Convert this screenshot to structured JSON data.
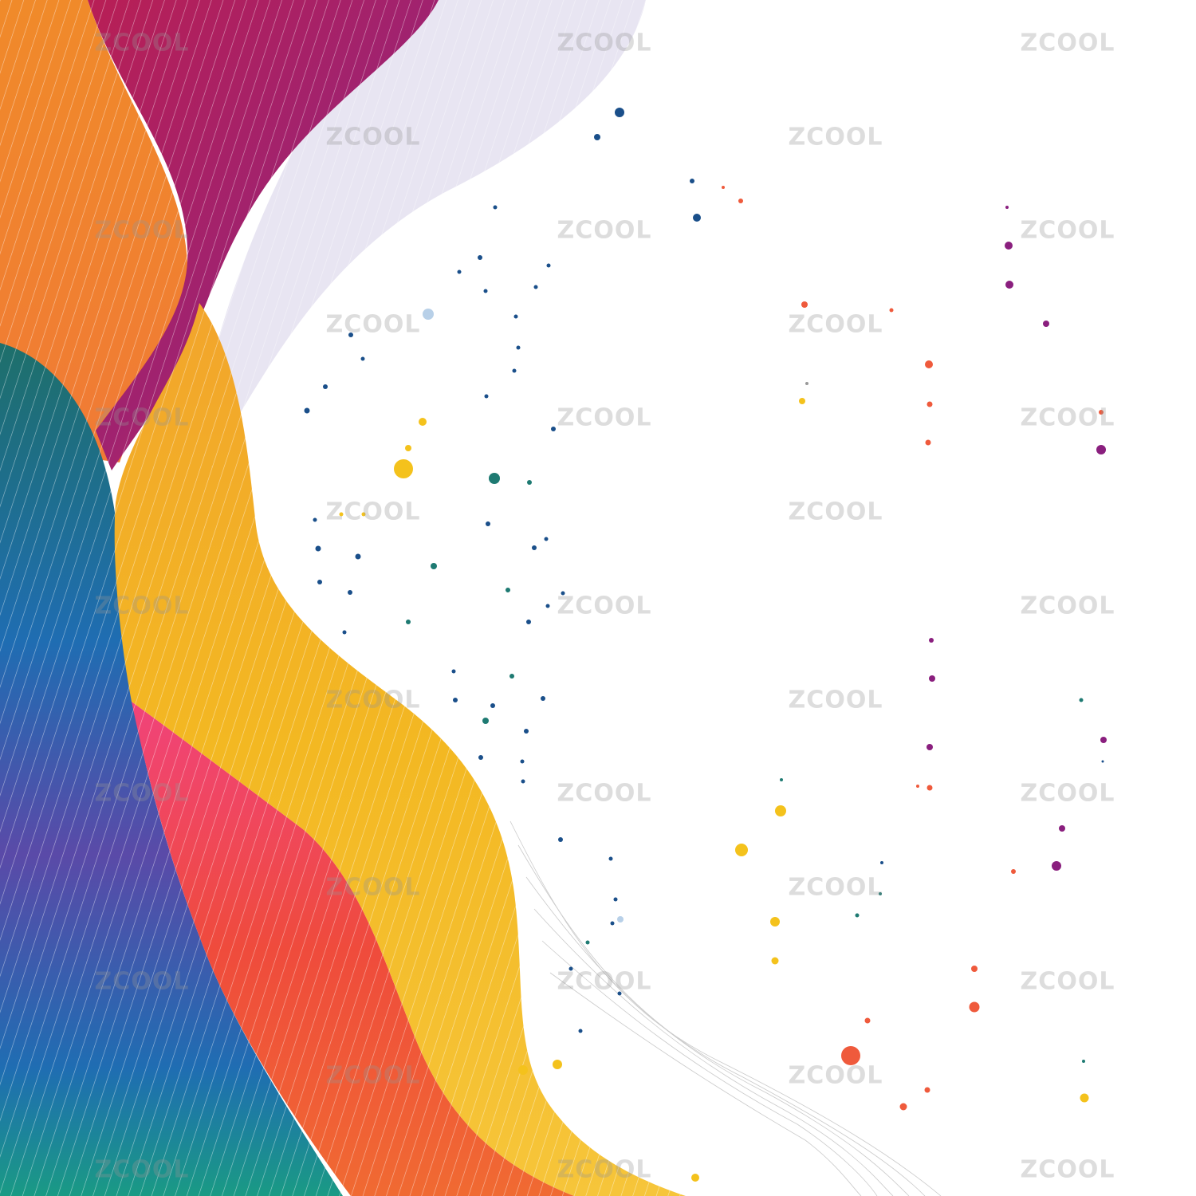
{
  "watermark": {
    "text": "ZCOOL"
  },
  "palette": {
    "background": "#ffffff",
    "teal": "#1e6f6a",
    "blue": "#1f6db2",
    "indigo": "#5a4aa8",
    "green": "#1a9a84",
    "orange": "#ee8a2c",
    "magenta": "#a8236b",
    "pink": "#e23a5d",
    "red": "#ee4b3a",
    "yellow": "#f2b824",
    "lavender": "#d5d0e6",
    "line_gray": "#c9c9c9",
    "dot_blue": "#1a4f8a",
    "dot_teal": "#1e7a72",
    "dot_yellow": "#f4c21c",
    "dot_red": "#ef5a3c",
    "dot_purple": "#8a1f7e"
  }
}
